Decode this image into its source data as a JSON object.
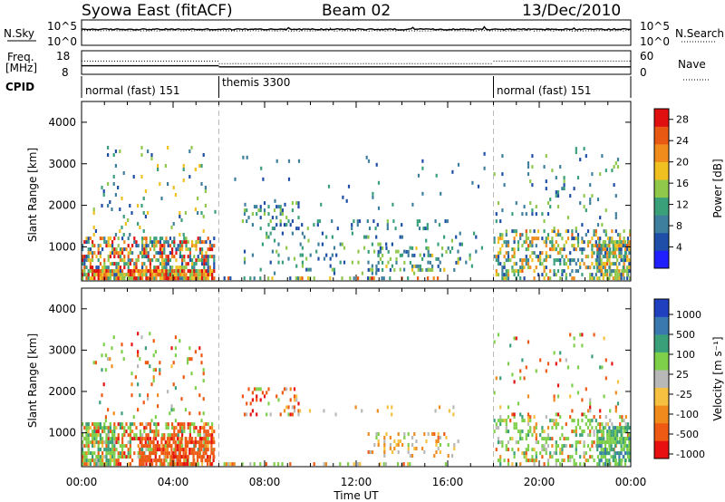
{
  "header": {
    "title": "Syowa East (fitACF)",
    "beam": "Beam 02",
    "date": "13/Dec/2010"
  },
  "top_panels": {
    "nsky_label": "N.Sky",
    "nsky_ticks": [
      "10^5",
      "10^0"
    ],
    "nsearch_label": "N.Search",
    "nsearch_ticks": [
      "10^5",
      "10^0"
    ],
    "freq_label_1": "Freq.",
    "freq_label_2": "[MHz]",
    "freq_ticks": [
      "18",
      "8"
    ],
    "nave_label": "Nave",
    "nave_ticks": [
      "60",
      "0"
    ],
    "cpid_label": "CPID",
    "cpid_segments": [
      {
        "label": "normal (fast) 151",
        "start_hour": 0,
        "end_hour": 6
      },
      {
        "label": "themis 3300",
        "start_hour": 6,
        "end_hour": 18
      },
      {
        "label": "normal (fast) 151",
        "start_hour": 18,
        "end_hour": 24
      }
    ]
  },
  "colors": {
    "power_scale": [
      "#1f1fff",
      "#1f4ea8",
      "#3d7f9c",
      "#3aa07a",
      "#8fc84a",
      "#f0c020",
      "#f08c1c",
      "#e85a14",
      "#e01010"
    ],
    "velocity_scale": [
      "#e81010",
      "#ee5a14",
      "#f08a1c",
      "#f6c040",
      "#b8b8b8",
      "#7ed04a",
      "#3aa07a",
      "#3a78b0",
      "#2040c0"
    ]
  },
  "chart_data": [
    {
      "type": "heatmap",
      "name": "power",
      "xlabel": "Time UT",
      "ylabel": "Slant Range [km]",
      "xlim": [
        0,
        24
      ],
      "ylim": [
        180,
        4500
      ],
      "x_ticks": [
        "00:00",
        "04:00",
        "08:00",
        "12:00",
        "16:00",
        "20:00",
        "00:00"
      ],
      "y_ticks": [
        "1000",
        "2000",
        "3000",
        "4000"
      ],
      "colorbar_label": "Power [dB]",
      "colorbar_ticks": [
        "4",
        "8",
        "12",
        "16",
        "20",
        "24",
        "28"
      ],
      "colorbar_range": [
        0,
        30
      ],
      "grid": false,
      "regions": [
        {
          "t0": 0.0,
          "t1": 5.8,
          "r0": 200,
          "r1": 1250,
          "density": 0.55,
          "level": [
            4,
            30
          ]
        },
        {
          "t0": 0.0,
          "t1": 5.8,
          "r0": 200,
          "r1": 420,
          "density": 0.75,
          "level": [
            12,
            30
          ]
        },
        {
          "t0": 0.5,
          "t1": 5.5,
          "r0": 1250,
          "r1": 3400,
          "density": 0.06,
          "level": [
            4,
            20
          ]
        },
        {
          "t0": 6.2,
          "t1": 16.0,
          "r0": 200,
          "r1": 320,
          "density": 0.35,
          "level": [
            4,
            28
          ]
        },
        {
          "t0": 7.0,
          "t1": 9.5,
          "r0": 1400,
          "r1": 2100,
          "density": 0.25,
          "level": [
            4,
            16
          ]
        },
        {
          "t0": 9.5,
          "t1": 16.5,
          "r0": 1400,
          "r1": 1700,
          "density": 0.12,
          "level": [
            4,
            14
          ]
        },
        {
          "t0": 7.0,
          "t1": 17.5,
          "r0": 320,
          "r1": 1400,
          "density": 0.08,
          "level": [
            4,
            16
          ]
        },
        {
          "t0": 12.5,
          "t1": 16.5,
          "r0": 400,
          "r1": 1000,
          "density": 0.22,
          "level": [
            4,
            18
          ]
        },
        {
          "t0": 18.0,
          "t1": 24.0,
          "r0": 200,
          "r1": 1400,
          "density": 0.35,
          "level": [
            4,
            24
          ]
        },
        {
          "t0": 22.5,
          "t1": 24.0,
          "r0": 200,
          "r1": 1200,
          "density": 0.7,
          "level": [
            4,
            24
          ]
        },
        {
          "t0": 18.0,
          "t1": 23.5,
          "r0": 1400,
          "r1": 3400,
          "density": 0.05,
          "level": [
            4,
            16
          ]
        },
        {
          "t0": 5.8,
          "t1": 18.0,
          "r0": 1800,
          "r1": 3300,
          "density": 0.02,
          "level": [
            4,
            12
          ]
        }
      ]
    },
    {
      "type": "heatmap",
      "name": "velocity",
      "xlabel": "Time UT",
      "ylabel": "Slant Range [km]",
      "xlim": [
        0,
        24
      ],
      "ylim": [
        180,
        4500
      ],
      "x_ticks": [
        "00:00",
        "04:00",
        "08:00",
        "12:00",
        "16:00",
        "20:00",
        "00:00"
      ],
      "y_ticks": [
        "1000",
        "2000",
        "3000",
        "4000"
      ],
      "colorbar_label": "Velocity [m s⁻¹]",
      "colorbar_ticks": [
        "1000",
        "500",
        "100",
        "25",
        "-25",
        "-100",
        "-500",
        "-1000"
      ],
      "colorbar_range": [
        -1000,
        1000
      ],
      "grid": false,
      "regions": [
        {
          "t0": 0.0,
          "t1": 5.8,
          "r0": 200,
          "r1": 1250,
          "density": 0.5,
          "level": [
            -600,
            600
          ]
        },
        {
          "t0": 2.5,
          "t1": 5.8,
          "r0": 200,
          "r1": 900,
          "density": 0.6,
          "level": [
            -600,
            -50
          ]
        },
        {
          "t0": 0.0,
          "t1": 1.5,
          "r0": 200,
          "r1": 1250,
          "density": 0.55,
          "level": [
            -50,
            700
          ]
        },
        {
          "t0": 0.5,
          "t1": 5.5,
          "r0": 1250,
          "r1": 3400,
          "density": 0.05,
          "level": [
            -600,
            600
          ]
        },
        {
          "t0": 6.2,
          "t1": 16.0,
          "r0": 200,
          "r1": 320,
          "density": 0.3,
          "level": [
            -300,
            300
          ]
        },
        {
          "t0": 7.0,
          "t1": 9.5,
          "r0": 1400,
          "r1": 2100,
          "density": 0.22,
          "level": [
            -600,
            200
          ]
        },
        {
          "t0": 9.5,
          "t1": 16.5,
          "r0": 1400,
          "r1": 1700,
          "density": 0.1,
          "level": [
            -80,
            80
          ]
        },
        {
          "t0": 12.5,
          "t1": 16.5,
          "r0": 400,
          "r1": 1000,
          "density": 0.2,
          "level": [
            -120,
            150
          ]
        },
        {
          "t0": 18.0,
          "t1": 24.0,
          "r0": 200,
          "r1": 1400,
          "density": 0.3,
          "level": [
            -200,
            600
          ]
        },
        {
          "t0": 22.5,
          "t1": 24.0,
          "r0": 200,
          "r1": 1200,
          "density": 0.7,
          "level": [
            100,
            900
          ]
        },
        {
          "t0": 18.0,
          "t1": 23.5,
          "r0": 1400,
          "r1": 3400,
          "density": 0.04,
          "level": [
            -600,
            600
          ]
        }
      ]
    },
    {
      "type": "line",
      "name": "nsky",
      "xlim": [
        0,
        24
      ],
      "ylim": [
        0,
        5
      ],
      "yscale": "log",
      "level": 3.2
    },
    {
      "type": "line",
      "name": "nsearch",
      "xlim": [
        0,
        24
      ],
      "ylim": [
        0,
        5
      ],
      "yscale": "log",
      "level": 2.9
    },
    {
      "type": "line",
      "name": "freq",
      "xlim": [
        0,
        24
      ],
      "ylim": [
        8,
        18
      ],
      "segments": [
        {
          "t0": 0,
          "t1": 6,
          "value": 11.5
        },
        {
          "t0": 6,
          "t1": 24,
          "value": 11.0
        }
      ]
    },
    {
      "type": "line",
      "name": "nave",
      "xlim": [
        0,
        24
      ],
      "ylim": [
        0,
        60
      ],
      "segments": [
        {
          "t0": 0,
          "t1": 6,
          "value": 34
        },
        {
          "t0": 6,
          "t1": 18,
          "value": 27
        },
        {
          "t0": 18,
          "t1": 24,
          "value": 34
        }
      ]
    }
  ]
}
